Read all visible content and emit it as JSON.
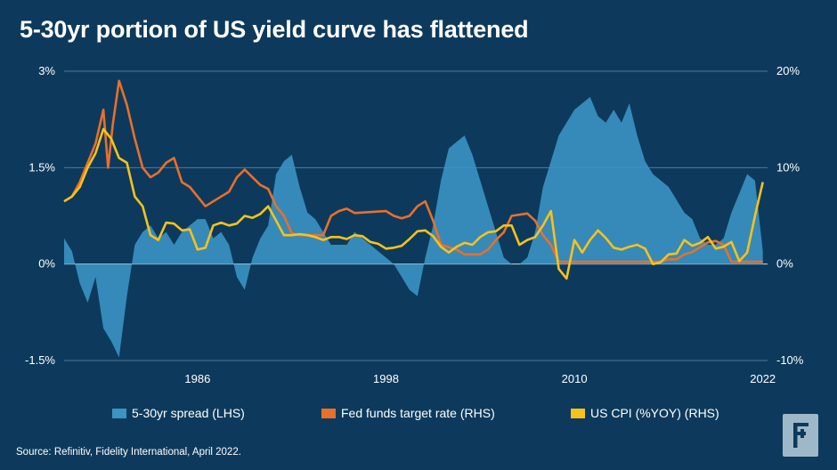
{
  "title": "5-30yr portion of US yield curve has flattened",
  "source": "Source: Refinitiv, Fidelity International, April 2022.",
  "logo_icon": "fidelity-logo-icon",
  "colors": {
    "background": "#0d3a5c",
    "spread": "#3a94c4",
    "fed": "#e8702a",
    "cpi": "#f7c21a",
    "grid": "#4f7a97"
  },
  "legend": [
    {
      "label": "5-30yr spread (LHS)",
      "color": "#3a94c4"
    },
    {
      "label": "Fed funds target rate (RHS)",
      "color": "#e8702a"
    },
    {
      "label": "US CPI (%YOY) (RHS)",
      "color": "#f7c21a"
    }
  ],
  "chart_data": {
    "type": "line",
    "title": "5-30yr portion of US yield curve has flattened",
    "x_range": [
      1977.5,
      2022.3
    ],
    "x_ticks": [
      "1986",
      "1998",
      "2010",
      "2022"
    ],
    "x_tick_values": [
      1986,
      1998,
      2010,
      2022
    ],
    "y_left": {
      "ticks": [
        "3%",
        "1.5%",
        "0%",
        "-1.5%"
      ],
      "tick_values": [
        3,
        1.5,
        0,
        -1.5
      ],
      "range": [
        -1.5,
        3
      ]
    },
    "y_right": {
      "ticks": [
        "20%",
        "10%",
        "0%",
        "-10%"
      ],
      "tick_values": [
        20,
        10,
        0,
        -10
      ],
      "range": [
        -10,
        20
      ]
    },
    "grid": true,
    "series": [
      {
        "name": "5-30yr spread (LHS)",
        "type": "area",
        "axis": "left",
        "x": [
          1977.5,
          1978,
          1978.5,
          1979,
          1979.5,
          1980,
          1980.5,
          1981,
          1981.5,
          1982,
          1982.5,
          1983,
          1983.5,
          1984,
          1984.5,
          1985,
          1985.5,
          1986,
          1986.5,
          1987,
          1987.5,
          1988,
          1988.5,
          1989,
          1989.5,
          1990,
          1990.5,
          1991,
          1991.5,
          1992,
          1992.5,
          1993,
          1993.5,
          1994,
          1994.5,
          1995,
          1995.5,
          1996,
          1996.5,
          1997,
          1997.5,
          1998,
          1998.5,
          1999,
          1999.5,
          2000,
          2000.5,
          2001,
          2001.5,
          2002,
          2002.5,
          2003,
          2003.5,
          2004,
          2004.5,
          2005,
          2005.5,
          2006,
          2006.5,
          2007,
          2007.5,
          2008,
          2008.5,
          2009,
          2009.5,
          2010,
          2010.5,
          2011,
          2011.5,
          2012,
          2012.5,
          2013,
          2013.5,
          2014,
          2014.5,
          2015,
          2015.5,
          2016,
          2016.5,
          2017,
          2017.5,
          2018,
          2018.5,
          2019,
          2019.5,
          2020,
          2020.5,
          2021,
          2021.5,
          2022
        ],
        "values": [
          0.4,
          0.2,
          -0.3,
          -0.6,
          -0.2,
          -1.0,
          -1.2,
          -1.45,
          -0.5,
          0.3,
          0.5,
          0.6,
          0.4,
          0.5,
          0.3,
          0.5,
          0.6,
          0.7,
          0.7,
          0.4,
          0.5,
          0.3,
          -0.2,
          -0.4,
          0.1,
          0.4,
          0.6,
          1.4,
          1.6,
          1.7,
          1.2,
          0.8,
          0.7,
          0.5,
          0.3,
          0.3,
          0.3,
          0.5,
          0.4,
          0.3,
          0.2,
          0.1,
          0.0,
          -0.2,
          -0.4,
          -0.5,
          0.1,
          0.6,
          1.3,
          1.8,
          1.9,
          2.0,
          1.7,
          1.3,
          0.9,
          0.5,
          0.1,
          0.0,
          0.0,
          0.1,
          0.5,
          1.2,
          1.6,
          2.0,
          2.2,
          2.4,
          2.5,
          2.6,
          2.3,
          2.2,
          2.4,
          2.2,
          2.5,
          2.0,
          1.6,
          1.4,
          1.3,
          1.2,
          1.0,
          0.8,
          0.7,
          0.4,
          0.3,
          0.3,
          0.4,
          0.8,
          1.1,
          1.4,
          1.3,
          0.2
        ]
      },
      {
        "name": "Fed funds target rate (RHS)",
        "type": "line",
        "axis": "right",
        "x": [
          1977.5,
          1978,
          1978.5,
          1979,
          1979.5,
          1980,
          1980.3,
          1980.6,
          1981,
          1981.5,
          1982,
          1982.5,
          1983,
          1983.5,
          1984,
          1984.5,
          1985,
          1985.5,
          1986,
          1986.5,
          1987,
          1987.5,
          1988,
          1988.5,
          1989,
          1989.5,
          1990,
          1990.5,
          1991,
          1991.5,
          1992,
          1992.5,
          1993,
          1994,
          1994.5,
          1995,
          1995.5,
          1996,
          1998,
          1998.5,
          1999,
          1999.5,
          2000,
          2000.5,
          2001,
          2001.5,
          2002,
          2002.5,
          2003,
          2003.5,
          2004,
          2004.5,
          2005,
          2005.5,
          2006,
          2007,
          2007.5,
          2008,
          2008.5,
          2009,
          2015,
          2015.5,
          2016,
          2016.5,
          2017,
          2017.5,
          2018,
          2018.5,
          2019,
          2019.5,
          2020,
          2022
        ],
        "values": [
          6.5,
          7.0,
          8.5,
          10.5,
          12.5,
          16.0,
          10.0,
          14.5,
          19.0,
          16.5,
          13.0,
          10.0,
          9.0,
          9.5,
          10.5,
          11.0,
          8.5,
          8.0,
          7.0,
          6.0,
          6.5,
          7.0,
          7.5,
          9.0,
          9.8,
          9.0,
          8.2,
          7.8,
          6.0,
          5.0,
          3.2,
          3.0,
          3.0,
          3.0,
          5.0,
          5.5,
          5.75,
          5.3,
          5.5,
          5.0,
          4.75,
          5.0,
          6.0,
          6.5,
          4.5,
          2.0,
          1.75,
          1.5,
          1.0,
          1.0,
          1.0,
          1.5,
          2.5,
          3.3,
          5.0,
          5.25,
          4.5,
          3.0,
          2.0,
          0.25,
          0.25,
          0.25,
          0.5,
          0.5,
          1.0,
          1.25,
          1.75,
          2.25,
          2.4,
          2.0,
          0.25,
          0.25
        ]
      },
      {
        "name": "US CPI (%YOY) (RHS)",
        "type": "line",
        "axis": "right",
        "x": [
          1977.5,
          1978,
          1978.5,
          1979,
          1979.5,
          1980,
          1980.5,
          1981,
          1981.5,
          1982,
          1982.5,
          1983,
          1983.5,
          1984,
          1984.5,
          1985,
          1985.5,
          1986,
          1986.5,
          1987,
          1987.5,
          1988,
          1988.5,
          1989,
          1989.5,
          1990,
          1990.5,
          1991,
          1991.5,
          1992,
          1992.5,
          1993,
          1993.5,
          1994,
          1994.5,
          1995,
          1995.5,
          1996,
          1996.5,
          1997,
          1997.5,
          1998,
          1998.5,
          1999,
          1999.5,
          2000,
          2000.5,
          2001,
          2001.5,
          2002,
          2002.5,
          2003,
          2003.5,
          2004,
          2004.5,
          2005,
          2005.5,
          2006,
          2006.5,
          2007,
          2007.5,
          2008,
          2008.5,
          2009,
          2009.5,
          2010,
          2010.5,
          2011,
          2011.5,
          2012,
          2012.5,
          2013,
          2013.5,
          2014,
          2014.5,
          2015,
          2015.5,
          2016,
          2016.5,
          2017,
          2017.5,
          2018,
          2018.5,
          2019,
          2019.5,
          2020,
          2020.5,
          2021,
          2021.5,
          2022
        ],
        "values": [
          6.5,
          7.0,
          8.0,
          10.0,
          11.5,
          14.0,
          13.0,
          11.0,
          10.5,
          7.0,
          6.0,
          3.0,
          2.5,
          4.3,
          4.2,
          3.5,
          3.6,
          1.5,
          1.7,
          4.0,
          4.3,
          4.0,
          4.2,
          5.0,
          4.8,
          5.2,
          6.0,
          4.5,
          3.0,
          3.0,
          3.1,
          3.0,
          2.8,
          2.5,
          2.8,
          2.8,
          2.6,
          3.0,
          2.9,
          2.3,
          2.1,
          1.6,
          1.7,
          1.9,
          2.6,
          3.4,
          3.5,
          2.9,
          1.8,
          1.2,
          1.8,
          2.2,
          2.0,
          2.8,
          3.3,
          3.4,
          4.0,
          4.0,
          2.0,
          2.5,
          2.8,
          4.0,
          5.5,
          -0.5,
          -1.5,
          2.5,
          1.2,
          2.5,
          3.5,
          2.7,
          1.7,
          1.5,
          1.8,
          2.0,
          1.6,
          0.0,
          0.2,
          1.0,
          1.1,
          2.5,
          1.9,
          2.2,
          2.8,
          1.6,
          1.8,
          2.3,
          0.3,
          1.2,
          5.0,
          8.5
        ]
      }
    ]
  }
}
